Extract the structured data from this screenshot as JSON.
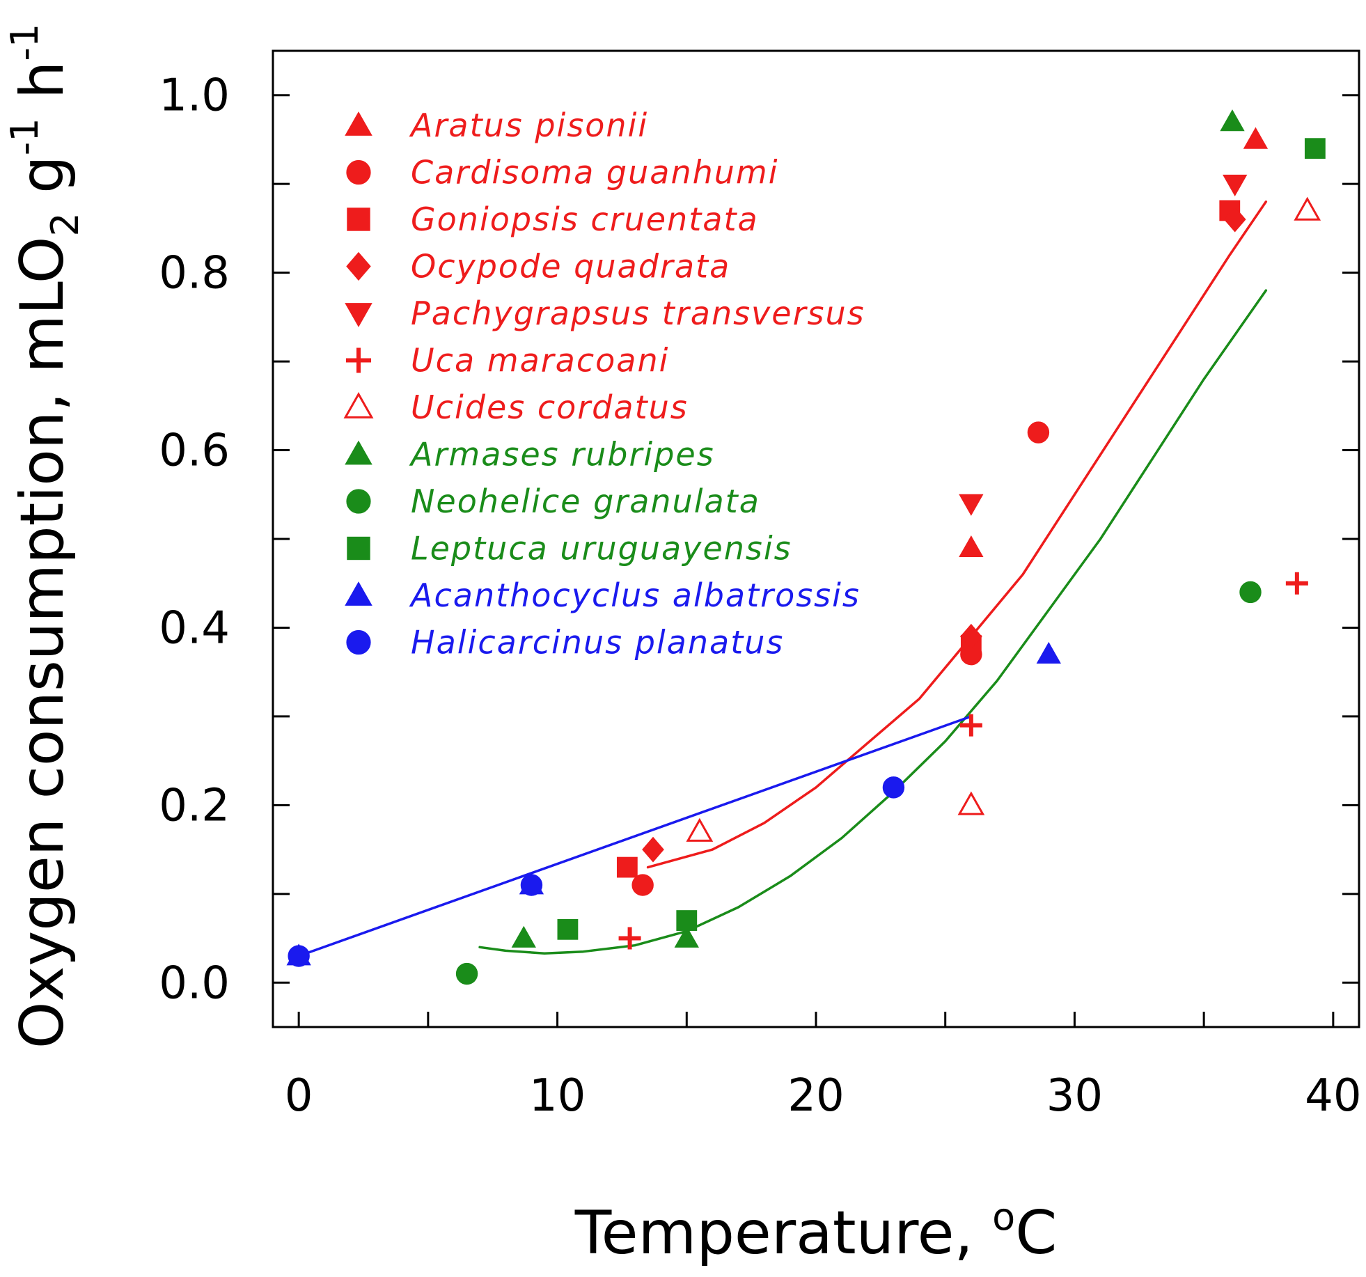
{
  "chart_data": {
    "type": "scatter",
    "title": "",
    "xlabel": "Temperature, ",
    "xlabel_degree_sup": "o",
    "xlabel_unit": "C",
    "ylabel_main": "Oxygen consumption, mLO",
    "ylabel_sub": "2",
    "ylabel_mid": " g",
    "ylabel_sup1": "-1",
    "ylabel_h": " h",
    "ylabel_sup2": "-1",
    "xlim": [
      -1,
      41
    ],
    "ylim": [
      -0.05,
      1.05
    ],
    "x_ticks": [
      0,
      10,
      20,
      30,
      40
    ],
    "x_tick_labels": [
      "0",
      "10",
      "20",
      "30",
      "40"
    ],
    "x_minor_ticks": [
      5,
      15,
      25,
      35
    ],
    "y_ticks": [
      0.0,
      0.2,
      0.4,
      0.6,
      0.8,
      1.0
    ],
    "y_tick_labels": [
      "0.0",
      "0.2",
      "0.4",
      "0.6",
      "0.8",
      "1.0"
    ],
    "y_minor_ticks": [
      0.1,
      0.3,
      0.5,
      0.7,
      0.9
    ],
    "grid": false,
    "legend_position": "top-left",
    "colors": {
      "red": "#ee1c1c",
      "green": "#1a8c1a",
      "blue": "#1a1aee"
    },
    "series": [
      {
        "name": "Aratus pisonii",
        "color": "red",
        "marker": "triangle",
        "filled": true,
        "points": [
          [
            26,
            0.49
          ],
          [
            37,
            0.95
          ]
        ]
      },
      {
        "name": "Cardisoma guanhumi",
        "color": "red",
        "marker": "circle",
        "filled": true,
        "points": [
          [
            13.3,
            0.11
          ],
          [
            26,
            0.37
          ],
          [
            28.6,
            0.62
          ]
        ]
      },
      {
        "name": "Goniopsis cruentata",
        "color": "red",
        "marker": "square",
        "filled": true,
        "points": [
          [
            12.7,
            0.13
          ],
          [
            26,
            0.38
          ],
          [
            36,
            0.87
          ]
        ]
      },
      {
        "name": "Ocypode quadrata",
        "color": "red",
        "marker": "diamond",
        "filled": true,
        "points": [
          [
            13.7,
            0.15
          ],
          [
            26,
            0.39
          ],
          [
            36.2,
            0.86
          ]
        ]
      },
      {
        "name": "Pachygrapsus transversus",
        "color": "red",
        "marker": "triangle-down",
        "filled": true,
        "points": [
          [
            26,
            0.54
          ],
          [
            36.2,
            0.9
          ]
        ]
      },
      {
        "name": "Uca maracoani",
        "color": "red",
        "marker": "plus",
        "filled": true,
        "points": [
          [
            12.8,
            0.05
          ],
          [
            26,
            0.29
          ],
          [
            38.6,
            0.45
          ]
        ]
      },
      {
        "name": "Ucides cordatus",
        "color": "red",
        "marker": "triangle",
        "filled": false,
        "points": [
          [
            15.5,
            0.17
          ],
          [
            26,
            0.2
          ],
          [
            39,
            0.87
          ]
        ]
      },
      {
        "name": "Armases rubripes",
        "color": "green",
        "marker": "triangle",
        "filled": true,
        "points": [
          [
            8.7,
            0.05
          ],
          [
            15,
            0.05
          ],
          [
            36.1,
            0.97
          ]
        ]
      },
      {
        "name": "Neohelice granulata",
        "color": "green",
        "marker": "circle",
        "filled": true,
        "points": [
          [
            6.5,
            0.01
          ],
          [
            36.8,
            0.44
          ]
        ]
      },
      {
        "name": "Leptuca uruguayensis",
        "color": "green",
        "marker": "square",
        "filled": true,
        "points": [
          [
            10.4,
            0.06
          ],
          [
            15,
            0.07
          ],
          [
            39.3,
            0.94
          ]
        ]
      },
      {
        "name": "Acanthocyclus albatrossis",
        "color": "blue",
        "marker": "triangle",
        "filled": true,
        "points": [
          [
            0,
            0.03
          ],
          [
            9,
            0.11
          ],
          [
            29,
            0.37
          ]
        ]
      },
      {
        "name": "Halicarcinus planatus",
        "color": "blue",
        "marker": "circle",
        "filled": true,
        "points": [
          [
            0,
            0.03
          ],
          [
            9,
            0.11
          ],
          [
            23,
            0.22
          ]
        ]
      }
    ],
    "fits": [
      {
        "name": "red fit",
        "color": "red",
        "points": [
          [
            13.5,
            0.13
          ],
          [
            16,
            0.15
          ],
          [
            18,
            0.18
          ],
          [
            20,
            0.22
          ],
          [
            22,
            0.27
          ],
          [
            24,
            0.32
          ],
          [
            26,
            0.39
          ],
          [
            28,
            0.46
          ],
          [
            30,
            0.55
          ],
          [
            32,
            0.64
          ],
          [
            34,
            0.73
          ],
          [
            36,
            0.82
          ],
          [
            37.4,
            0.88
          ]
        ]
      },
      {
        "name": "green fit",
        "color": "green",
        "points": [
          [
            7,
            0.04
          ],
          [
            8,
            0.036
          ],
          [
            9.5,
            0.033
          ],
          [
            11,
            0.035
          ],
          [
            13,
            0.042
          ],
          [
            15,
            0.058
          ],
          [
            17,
            0.085
          ],
          [
            19,
            0.12
          ],
          [
            21,
            0.163
          ],
          [
            23,
            0.215
          ],
          [
            25,
            0.272
          ],
          [
            27,
            0.34
          ],
          [
            29,
            0.42
          ],
          [
            31,
            0.5
          ],
          [
            33,
            0.59
          ],
          [
            35,
            0.68
          ],
          [
            37.4,
            0.78
          ]
        ]
      },
      {
        "name": "blue fit",
        "color": "blue",
        "points": [
          [
            0,
            0.03
          ],
          [
            26,
            0.3
          ]
        ]
      }
    ]
  }
}
